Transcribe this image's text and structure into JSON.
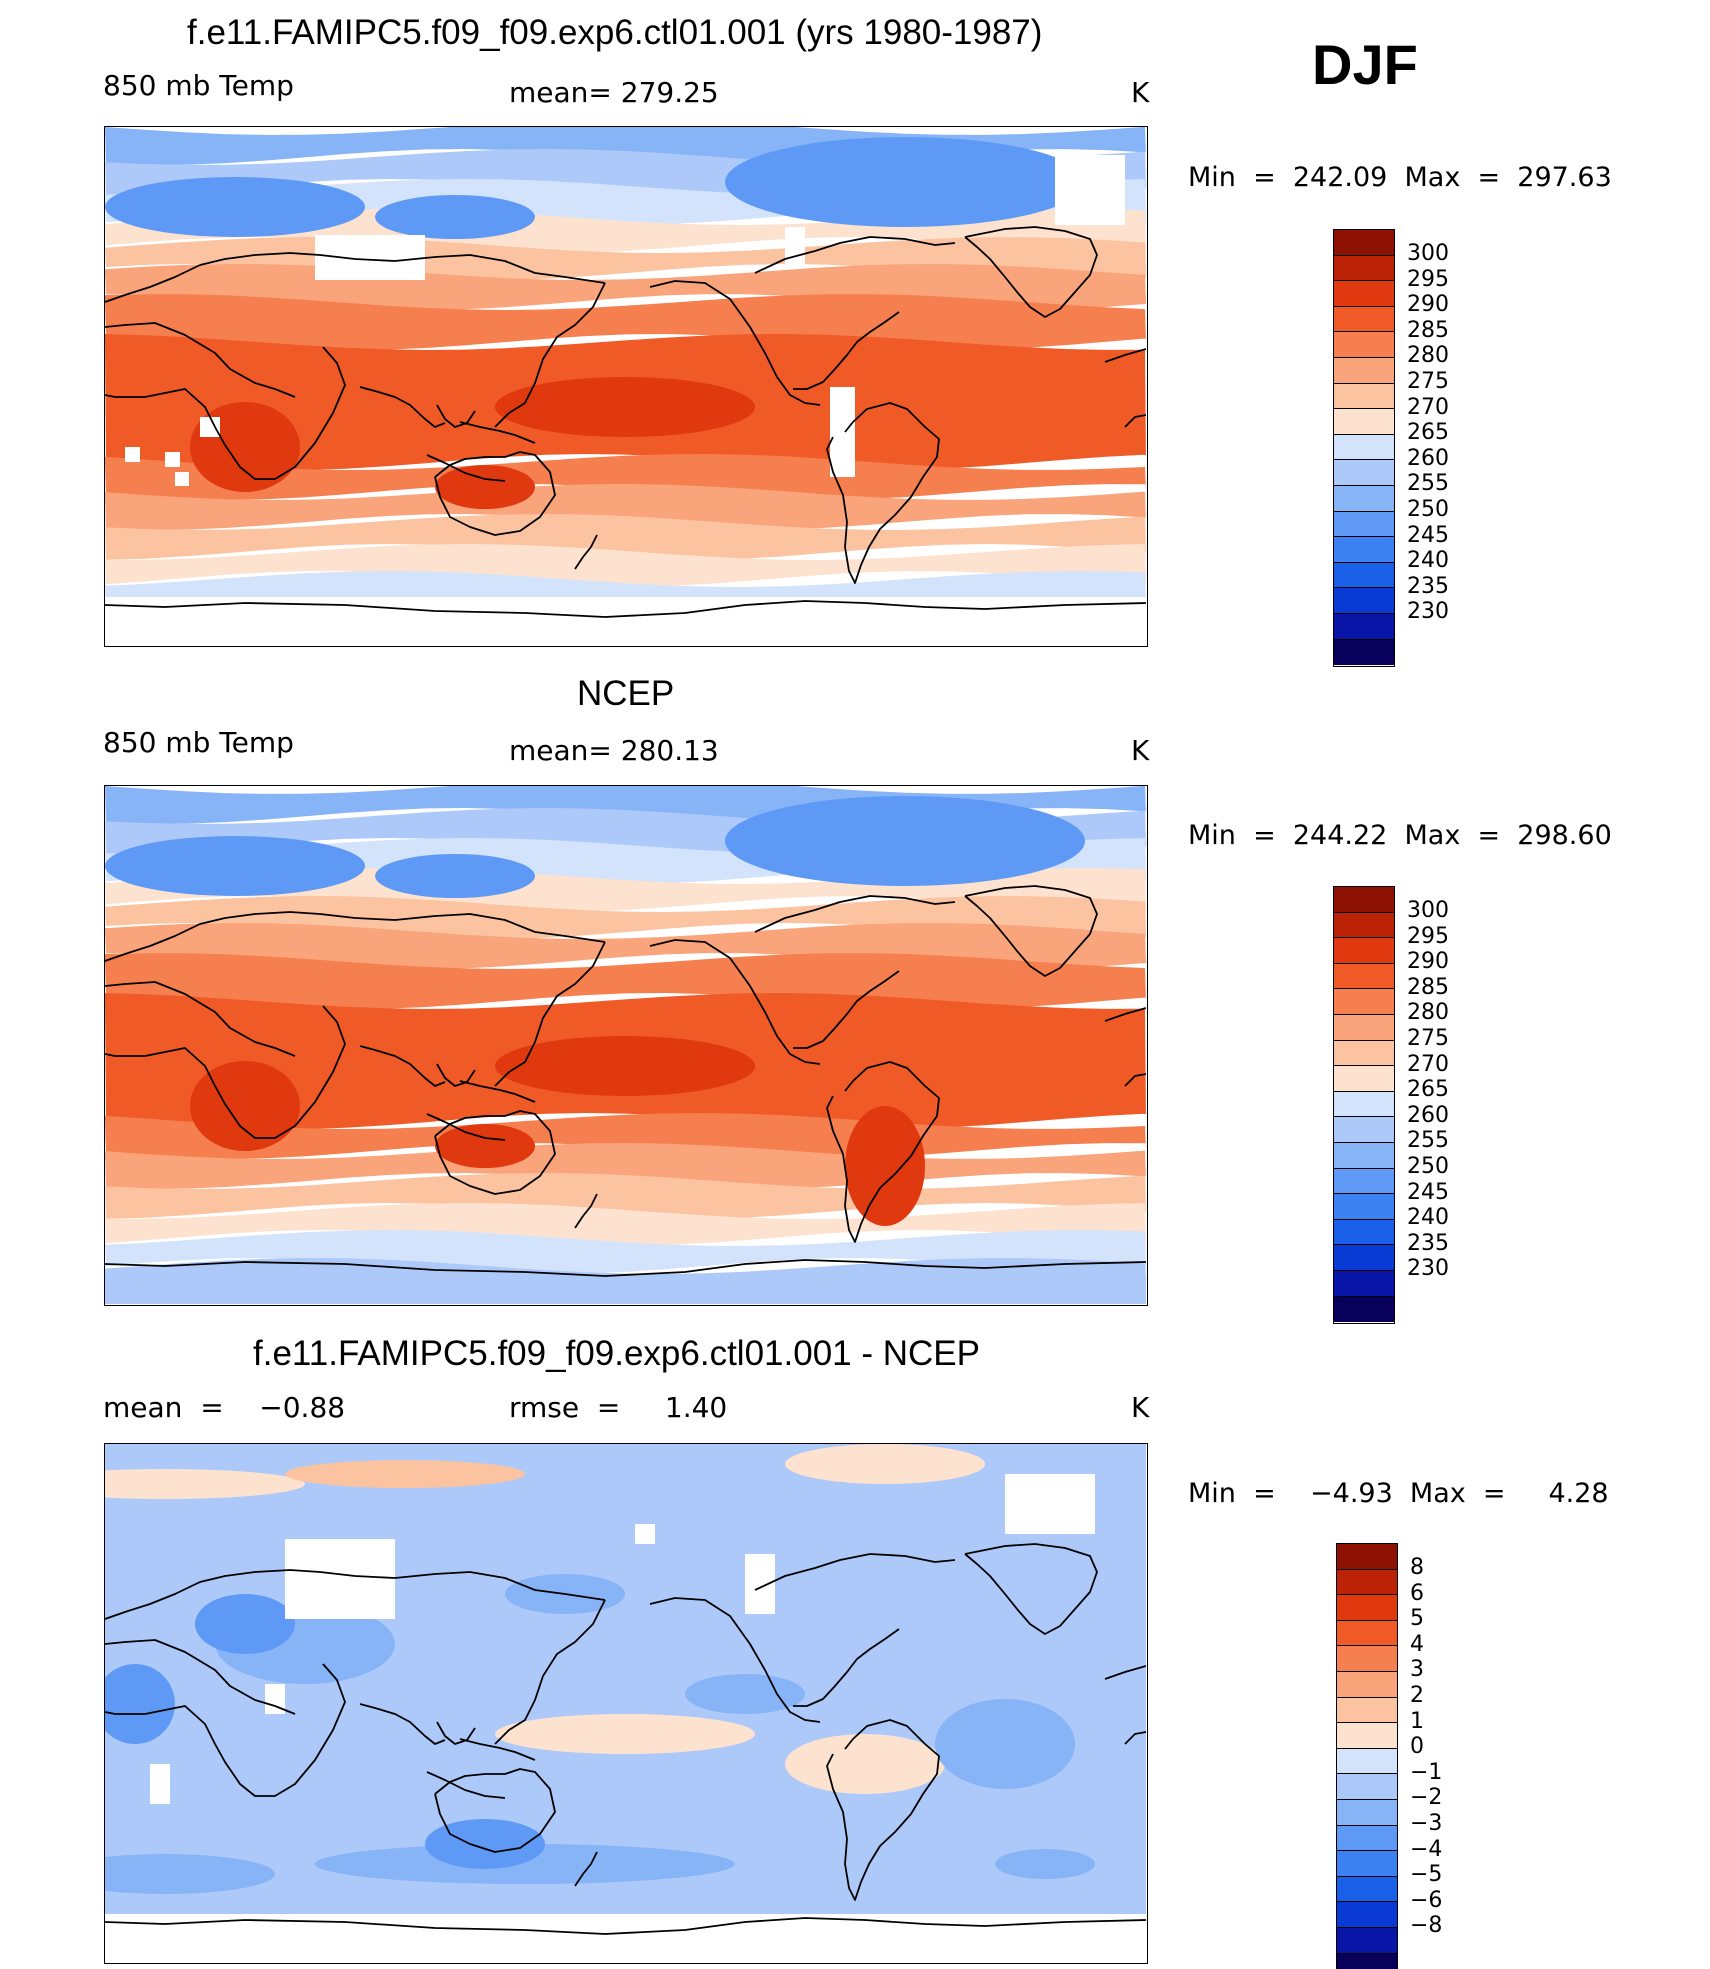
{
  "season": "DJF",
  "palettes": {
    "temperature": [
      "#08005a",
      "#0a16a8",
      "#0a3ad4",
      "#1a5fe8",
      "#3c81f2",
      "#5e9af5",
      "#87b3f7",
      "#adc9f9",
      "#d3e3fb",
      "#fde3cf",
      "#fbc3a0",
      "#f9a47a",
      "#f57f4e",
      "#ef5a27",
      "#e0380f",
      "#bb2206",
      "#8e1204"
    ],
    "difference": [
      "#08005a",
      "#0a16a8",
      "#0a3ad4",
      "#1a5fe8",
      "#3c81f2",
      "#5e9af5",
      "#87b3f7",
      "#adc9f9",
      "#d3e3fb",
      "#fde3cf",
      "#fbc3a0",
      "#f9a47a",
      "#f57f4e",
      "#ef5a27",
      "#e0380f",
      "#bb2206",
      "#8e1204"
    ],
    "land_mask": "#ffffff",
    "coast": "#000000"
  },
  "panels": [
    {
      "title": "f.e11.FAMIPC5.f09_f09.exp6.ctl01.001 (yrs 1980-1987)",
      "left": "850 mb Temp",
      "center": "mean= 279.25",
      "right": "K",
      "minmax": "Min  =  242.09  Max  =  297.63",
      "variant": "model",
      "colorbar_labels": [
        "300",
        "295",
        "290",
        "285",
        "280",
        "275",
        "270",
        "265",
        "260",
        "255",
        "250",
        "245",
        "240",
        "235",
        "230"
      ]
    },
    {
      "title": "NCEP",
      "left": "850 mb Temp",
      "center": "mean= 280.13",
      "right": "K",
      "minmax": "Min  =  244.22  Max  =  298.60",
      "variant": "obs",
      "colorbar_labels": [
        "300",
        "295",
        "290",
        "285",
        "280",
        "275",
        "270",
        "265",
        "260",
        "255",
        "250",
        "245",
        "240",
        "235",
        "230"
      ]
    },
    {
      "title": "f.e11.FAMIPC5.f09_f09.exp6.ctl01.001 - NCEP",
      "left": "mean  =    −0.88",
      "center": "rmse  =     1.40",
      "right": "K",
      "minmax": "Min  =    −4.93  Max  =     4.28",
      "variant": "diff",
      "colorbar_labels": [
        "8",
        "6",
        "5",
        "4",
        "3",
        "2",
        "1",
        "0",
        "−1",
        "−2",
        "−3",
        "−4",
        "−5",
        "−6",
        "−8"
      ]
    }
  ]
}
